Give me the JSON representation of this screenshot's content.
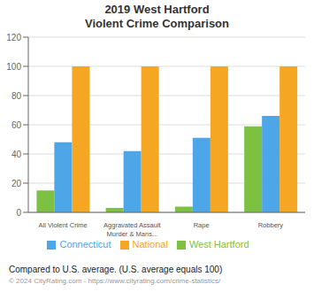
{
  "chart_data": {
    "type": "bar",
    "title": "2019 West Hartford",
    "subtitle": "Violent Crime Comparison",
    "categories": [
      "All Violent Crime",
      "Aggravated Assault\nMurder & Mans...",
      "Rape",
      "Robbery"
    ],
    "series": [
      {
        "name": "West Hartford",
        "color": "#7dc142",
        "values": [
          15,
          3,
          4,
          59
        ]
      },
      {
        "name": "Connecticut",
        "color": "#4da6e8",
        "values": [
          48,
          42,
          51,
          66
        ]
      },
      {
        "name": "National",
        "color": "#f5a623",
        "values": [
          100,
          100,
          100,
          100
        ]
      }
    ],
    "ylim": [
      0,
      120
    ],
    "yticks": [
      0,
      20,
      40,
      60,
      80,
      100,
      120
    ],
    "grid": true,
    "legend": "bottom",
    "annotations": [
      "Compared to U.S. average. (U.S. average equals 100)",
      "© 2024 CityRating.com - https://www.cityrating.com/crime-statistics/"
    ]
  }
}
